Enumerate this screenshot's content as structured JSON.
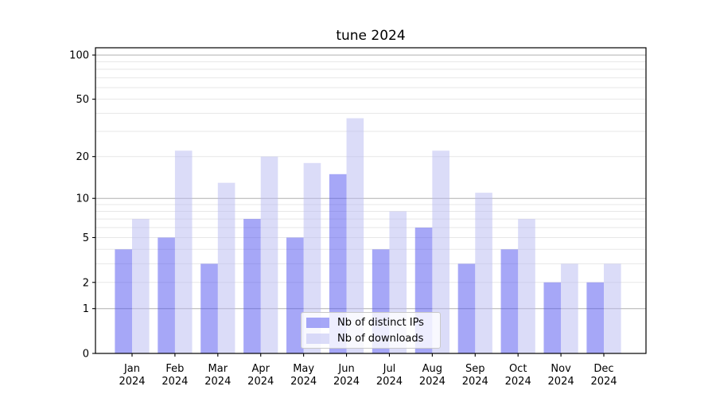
{
  "title": "tune 2024",
  "chart_data": {
    "type": "bar",
    "title": "tune 2024",
    "categories": [
      "Jan",
      "Feb",
      "Mar",
      "Apr",
      "May",
      "Jun",
      "Jul",
      "Aug",
      "Sep",
      "Oct",
      "Nov",
      "Dec"
    ],
    "category_year_label": "2024",
    "series": [
      {
        "name": "Nb of distinct IPs",
        "color": "#a6a7f7",
        "values": [
          4,
          5,
          3,
          7,
          5,
          15,
          4,
          6,
          3,
          4,
          2,
          2
        ]
      },
      {
        "name": "Nb of downloads",
        "color": "#dbdcf8",
        "values": [
          7,
          22,
          13,
          20,
          18,
          37,
          8,
          22,
          11,
          7,
          3,
          3
        ]
      }
    ],
    "xlabel": "",
    "ylabel": "",
    "y_axis": {
      "scale": "log1p",
      "range": [
        0,
        112
      ],
      "tick_labels": [
        "0",
        "1",
        "2",
        "5",
        "10",
        "20",
        "50",
        "100"
      ],
      "tick_values": [
        0,
        1,
        2,
        5,
        10,
        20,
        50,
        100
      ],
      "major_gridline_values": [
        1,
        10,
        100
      ],
      "minor_gridline_values": [
        2,
        3,
        4,
        5,
        6,
        7,
        8,
        9,
        20,
        30,
        40,
        50,
        60,
        70,
        80,
        90
      ]
    },
    "grid": true,
    "legend": {
      "position": "lower center",
      "labels": [
        "Nb of distinct IPs",
        "Nb of downloads"
      ]
    }
  },
  "colors": {
    "background": "#ffffff",
    "axis": "#000000",
    "text": "#000000",
    "major_grid": "#b0b0b0",
    "minor_grid": "#e7e7e7",
    "legend_border": "#c9c9c9"
  }
}
